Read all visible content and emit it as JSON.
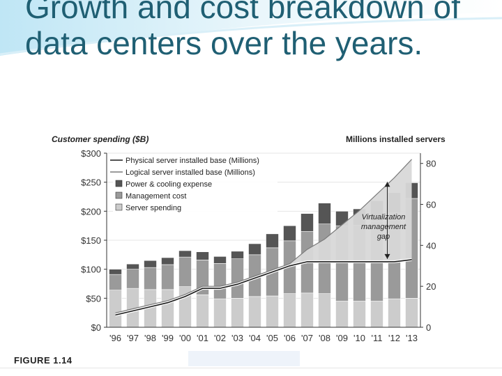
{
  "slide": {
    "title": "Growth and cost breakdown of data centers over the years.",
    "figure_label": "FIGURE 1.14"
  },
  "chart_data": {
    "type": "bar",
    "left_axis_title": "Customer spending ($B)",
    "right_axis_title": "Millions installed servers",
    "categories": [
      "'96",
      "'97",
      "'98",
      "'99",
      "'00",
      "'01",
      "'02",
      "'03",
      "'04",
      "'05",
      "'06",
      "'07",
      "'08",
      "'09",
      "'10",
      "'11",
      "'12",
      "'13"
    ],
    "left_ticks": [
      "$0",
      "$50",
      "$100",
      "$150",
      "$200",
      "$250",
      "$300"
    ],
    "right_ticks": [
      "0",
      "20",
      "40",
      "60",
      "80"
    ],
    "ylim_left": [
      0,
      300
    ],
    "ylim_right": [
      0,
      85
    ],
    "series": [
      {
        "name": "Server spending",
        "color": "#cccccc",
        "values": [
          64,
          67,
          65,
          65,
          70,
          56,
          49,
          50,
          53,
          54,
          58,
          59,
          58,
          45,
          45,
          45,
          49,
          50
        ]
      },
      {
        "name": "Management cost",
        "color": "#9a9a9a",
        "values": [
          27,
          33,
          38,
          43,
          51,
          60,
          61,
          68,
          72,
          83,
          91,
          106,
          120,
          130,
          131,
          138,
          148,
          172
        ]
      },
      {
        "name": "Power & cooling expense",
        "color": "#555555",
        "values": [
          9,
          9,
          12,
          12,
          11,
          14,
          12,
          13,
          19,
          24,
          26,
          31,
          36,
          25,
          28,
          35,
          35,
          27
        ]
      }
    ],
    "lines": [
      {
        "name": "Physical server installed base (Millions)",
        "color": "#1a1a1a",
        "values": [
          6,
          8,
          10,
          12,
          15,
          19,
          19,
          21,
          24,
          27,
          30,
          32,
          32,
          32,
          32,
          32,
          32,
          33
        ]
      },
      {
        "name": "Logical server installed base (Millions)",
        "color": "#7a7a7a",
        "values": [
          7,
          9,
          11,
          13,
          16,
          20,
          20,
          22,
          25,
          28,
          31,
          38,
          43,
          50,
          57,
          65,
          73,
          82
        ]
      }
    ],
    "legend": [
      {
        "label": "Physical server installed base (Millions)",
        "kind": "line",
        "color": "#1a1a1a"
      },
      {
        "label": "Logical server installed base (Millions)",
        "kind": "line",
        "color": "#7a7a7a"
      },
      {
        "label": "Power & cooling expense",
        "kind": "box",
        "color": "#555555"
      },
      {
        "label": "Management cost",
        "kind": "box",
        "color": "#9a9a9a"
      },
      {
        "label": "Server spending",
        "kind": "box",
        "color": "#cccccc"
      }
    ],
    "annotation": {
      "lines": [
        "Virtualization",
        "management",
        "gap"
      ]
    }
  }
}
